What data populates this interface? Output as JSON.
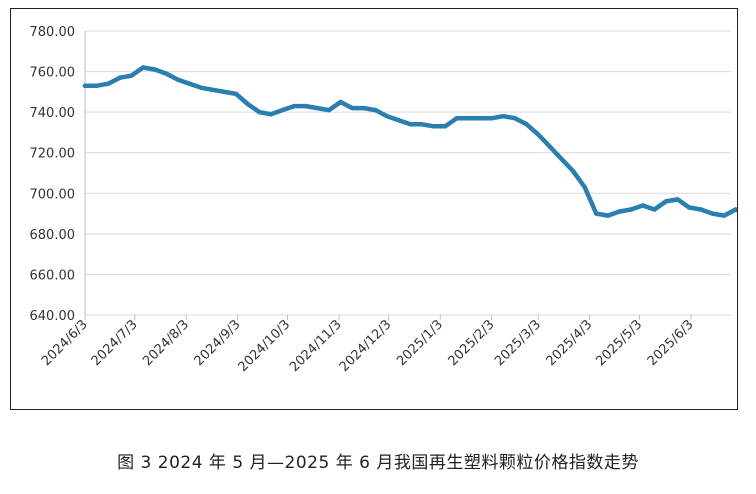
{
  "caption": "图 3 2024 年 5 月—2025 年 6 月我国再生塑料颗粒价格指数走势",
  "chart_data": {
    "type": "line",
    "title": "",
    "xlabel": "",
    "ylabel": "",
    "ylim": [
      640,
      780
    ],
    "yticks": [
      "780.00",
      "760.00",
      "740.00",
      "720.00",
      "700.00",
      "680.00",
      "660.00",
      "640.00"
    ],
    "xticks": [
      "2024/6/3",
      "2024/7/3",
      "2024/8/3",
      "2024/9/3",
      "2024/10/3",
      "2024/11/3",
      "2024/12/3",
      "2025/1/3",
      "2025/2/3",
      "2025/3/3",
      "2025/4/3",
      "2025/5/3",
      "2025/6/3"
    ],
    "grid": "horizontal",
    "color": "#2a7fb0",
    "series": [
      {
        "x": [
          "2024/6/3",
          "2024/6/10",
          "2024/6/17",
          "2024/6/24",
          "2024/7/1",
          "2024/7/8",
          "2024/7/15",
          "2024/7/22",
          "2024/7/29",
          "2024/8/5",
          "2024/8/12",
          "2024/8/19",
          "2024/8/26",
          "2024/9/2",
          "2024/9/9",
          "2024/9/16",
          "2024/9/23",
          "2024/9/30",
          "2024/10/7",
          "2024/10/14",
          "2024/10/21",
          "2024/10/28",
          "2024/11/4",
          "2024/11/11",
          "2024/11/18",
          "2024/11/25",
          "2024/12/2",
          "2024/12/9",
          "2024/12/16",
          "2024/12/23",
          "2024/12/30",
          "2025/1/6",
          "2025/1/13",
          "2025/1/20",
          "2025/1/27",
          "2025/2/3",
          "2025/2/10",
          "2025/2/17",
          "2025/2/24",
          "2025/3/3",
          "2025/3/10",
          "2025/3/17",
          "2025/3/24",
          "2025/3/31",
          "2025/4/7",
          "2025/4/14",
          "2025/4/21",
          "2025/4/28",
          "2025/5/5",
          "2025/5/12",
          "2025/5/19",
          "2025/5/26",
          "2025/6/2",
          "2025/6/9",
          "2025/6/16",
          "2025/6/23"
        ],
        "values": [
          753,
          753,
          754,
          757,
          758,
          762,
          761,
          759,
          756,
          754,
          752,
          751,
          750,
          749,
          744,
          740,
          739,
          741,
          743,
          743,
          742,
          741,
          745,
          742,
          742,
          741,
          738,
          736,
          734,
          734,
          733,
          733,
          737,
          737,
          737,
          737,
          738,
          737,
          734,
          729,
          723,
          717,
          711,
          703,
          690,
          689,
          691,
          692,
          694,
          692,
          696,
          697,
          693,
          692,
          690,
          689
        ]
      },
      {
        "x": [
          "2025/6/30",
          "2025/7/7"
        ],
        "values": [
          692,
          690
        ]
      }
    ]
  }
}
